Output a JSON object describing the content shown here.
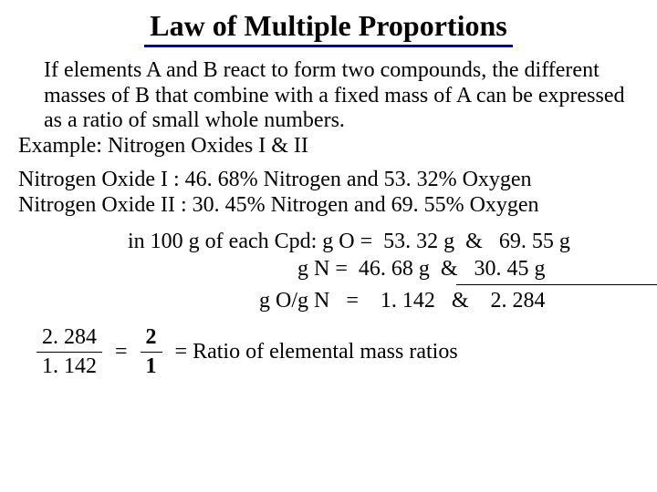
{
  "title": "Law of Multiple Proportions",
  "definition_indent": "If elements A and B react to form two compounds, the different masses of B that combine with a fixed mass of A can be expressed as a ratio of small whole numbers.",
  "example_label": "Example: Nitrogen Oxides I & II",
  "compound1": "Nitrogen Oxide I  : 46. 68% Nitrogen and 53. 32% Oxygen",
  "compound2": "Nitrogen Oxide II : 30. 45% Nitrogen and 69. 55% Oxygen",
  "calc_line1": "in 100 g of each Cpd: g O =  53. 32 g  &   69. 55 g",
  "calc_line2": "                               g N =  46. 68 g  &   30. 45 g",
  "calc_line3": "                        g O/g N   =    1. 142   &    2. 284",
  "frac1": {
    "num": "2. 284",
    "den": "1. 142"
  },
  "eq1": "=",
  "frac2": {
    "num": "2",
    "den": "1"
  },
  "ratio_text": "= Ratio of elemental mass ratios",
  "colors": {
    "underline": "#000099",
    "text": "#000000",
    "background": "#ffffff"
  },
  "fontsizes": {
    "title": 32,
    "body": 24
  }
}
